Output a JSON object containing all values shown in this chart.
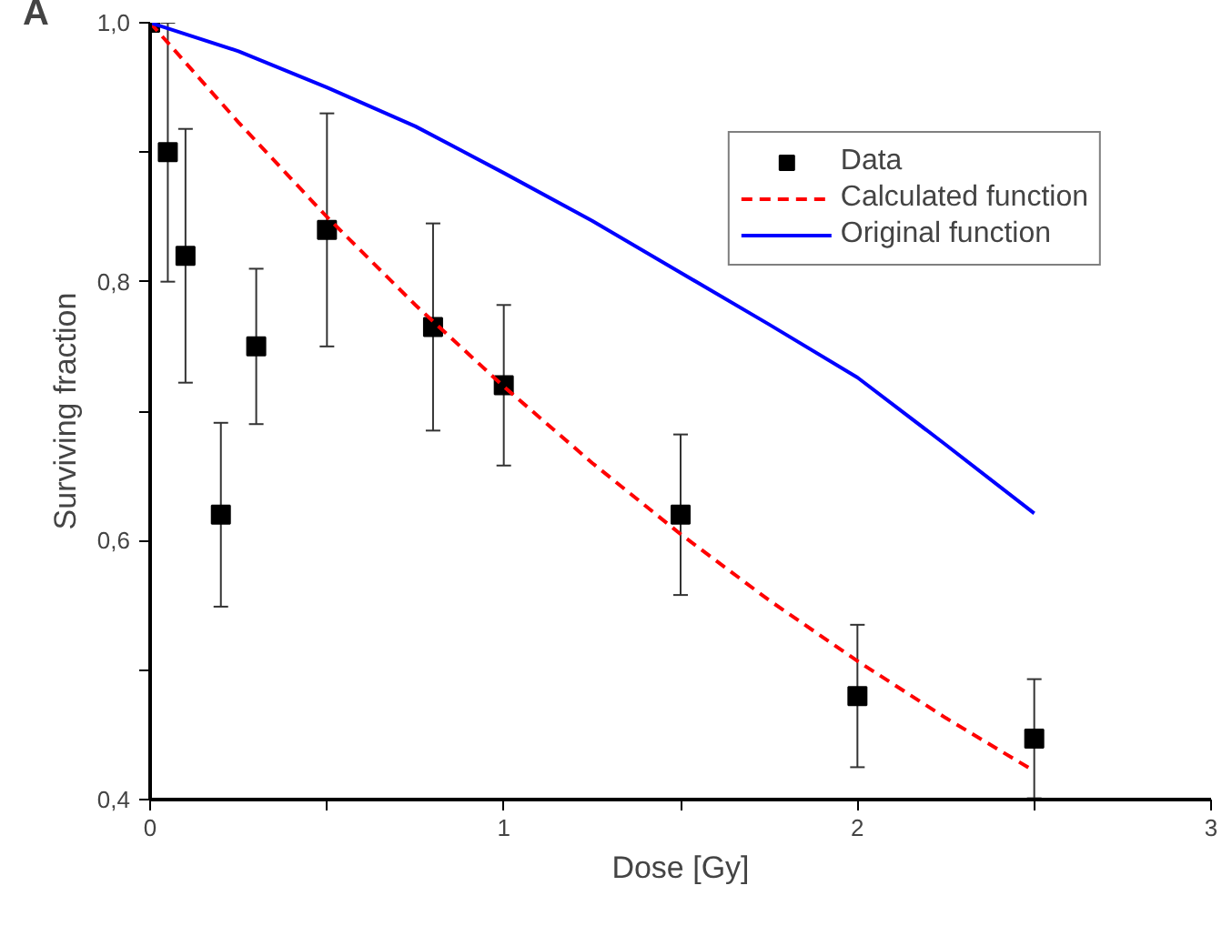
{
  "chart_data": {
    "type": "scatter",
    "xlabel": "Dose [Gy]",
    "ylabel": "Surviving fraction",
    "annotations": [
      "A"
    ],
    "xlim": [
      0,
      3
    ],
    "ylim": [
      0.4,
      1.0
    ],
    "xticks": [
      0,
      {
        "value": 0.5,
        "label": null
      },
      1,
      {
        "value": 1.5,
        "label": null
      },
      2,
      {
        "value": 2.5,
        "label": null
      },
      3
    ],
    "yticks": [
      {
        "value": 0.4,
        "label": "0,4"
      },
      {
        "value": 0.5,
        "label": null
      },
      {
        "value": 0.6,
        "label": "0,6"
      },
      {
        "value": 0.7,
        "label": null
      },
      {
        "value": 0.8,
        "label": "0,8"
      },
      {
        "value": 0.9,
        "label": null
      },
      {
        "value": 1.0,
        "label": "1,0"
      }
    ],
    "grid": false,
    "legend": "top right",
    "series": [
      {
        "name": "Data",
        "marker": "square",
        "color": "#000000",
        "x": [
          0,
          0.05,
          0.1,
          0.2,
          0.3,
          0.5,
          0.8,
          1.0,
          1.5,
          2.0,
          2.5
        ],
        "values": [
          1.0,
          0.9,
          0.82,
          0.62,
          0.75,
          0.84,
          0.765,
          0.72,
          0.62,
          0.48,
          0.447
        ],
        "errors": [
          null,
          0.1,
          0.098,
          0.071,
          0.06,
          0.09,
          0.08,
          0.062,
          0.062,
          0.055,
          0.046
        ]
      },
      {
        "name": "Calculated function",
        "type": "line",
        "line_style": "dashed",
        "color": "#ff0000",
        "x": [
          0,
          0.25,
          0.5,
          0.75,
          1.0,
          1.25,
          1.5,
          1.75,
          2.0,
          2.25,
          2.5
        ],
        "values": [
          1.0,
          0.923,
          0.85,
          0.782,
          0.719,
          0.66,
          0.605,
          0.554,
          0.507,
          0.463,
          0.422
        ]
      },
      {
        "name": "Original function",
        "type": "line",
        "line_style": "solid",
        "color": "#0000ff",
        "x": [
          0,
          0.25,
          0.5,
          0.75,
          1.0,
          1.25,
          1.5,
          1.75,
          2.0,
          2.25,
          2.5
        ],
        "values": [
          1.0,
          0.978,
          0.95,
          0.92,
          0.884,
          0.847,
          0.807,
          0.767,
          0.726,
          0.674,
          0.621
        ]
      }
    ]
  }
}
